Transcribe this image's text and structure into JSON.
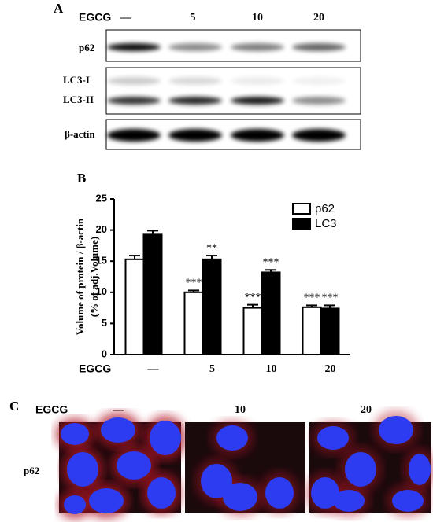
{
  "panel_a": {
    "label": "A",
    "treatment": "EGCG",
    "doses": [
      "—",
      "5",
      "10",
      "20"
    ],
    "rows": [
      "p62",
      "LC3-I",
      "LC3-II",
      "β-actin"
    ]
  },
  "chart_data": {
    "type": "bar",
    "label": "B",
    "y_label": "Volume of protein / β-actin",
    "y_label_2": "(% of adj.Volume)",
    "x_label": "EGCG",
    "categories": [
      "—",
      "5",
      "10",
      "20"
    ],
    "series": [
      {
        "name": "p62",
        "color": "#ffffff",
        "values": [
          15.3,
          10,
          7.5,
          7.6
        ],
        "errors": [
          0.6,
          0.3,
          0.5,
          0.3
        ],
        "annotations": [
          null,
          "***",
          "***",
          "***"
        ]
      },
      {
        "name": "LC3",
        "color": "#000000",
        "values": [
          19.4,
          15.3,
          13.2,
          7.4
        ],
        "errors": [
          0.5,
          0.6,
          0.4,
          0.5
        ],
        "annotations": [
          null,
          "**",
          "***",
          "***"
        ]
      }
    ],
    "ylim": [
      0,
      25
    ],
    "yticks": [
      0,
      5,
      10,
      15,
      20,
      25
    ],
    "grid": false,
    "legend": "top-right"
  },
  "panel_c": {
    "label": "C",
    "treatment": "EGCG",
    "doses": [
      "—",
      "10",
      "20"
    ],
    "row": "p62"
  }
}
